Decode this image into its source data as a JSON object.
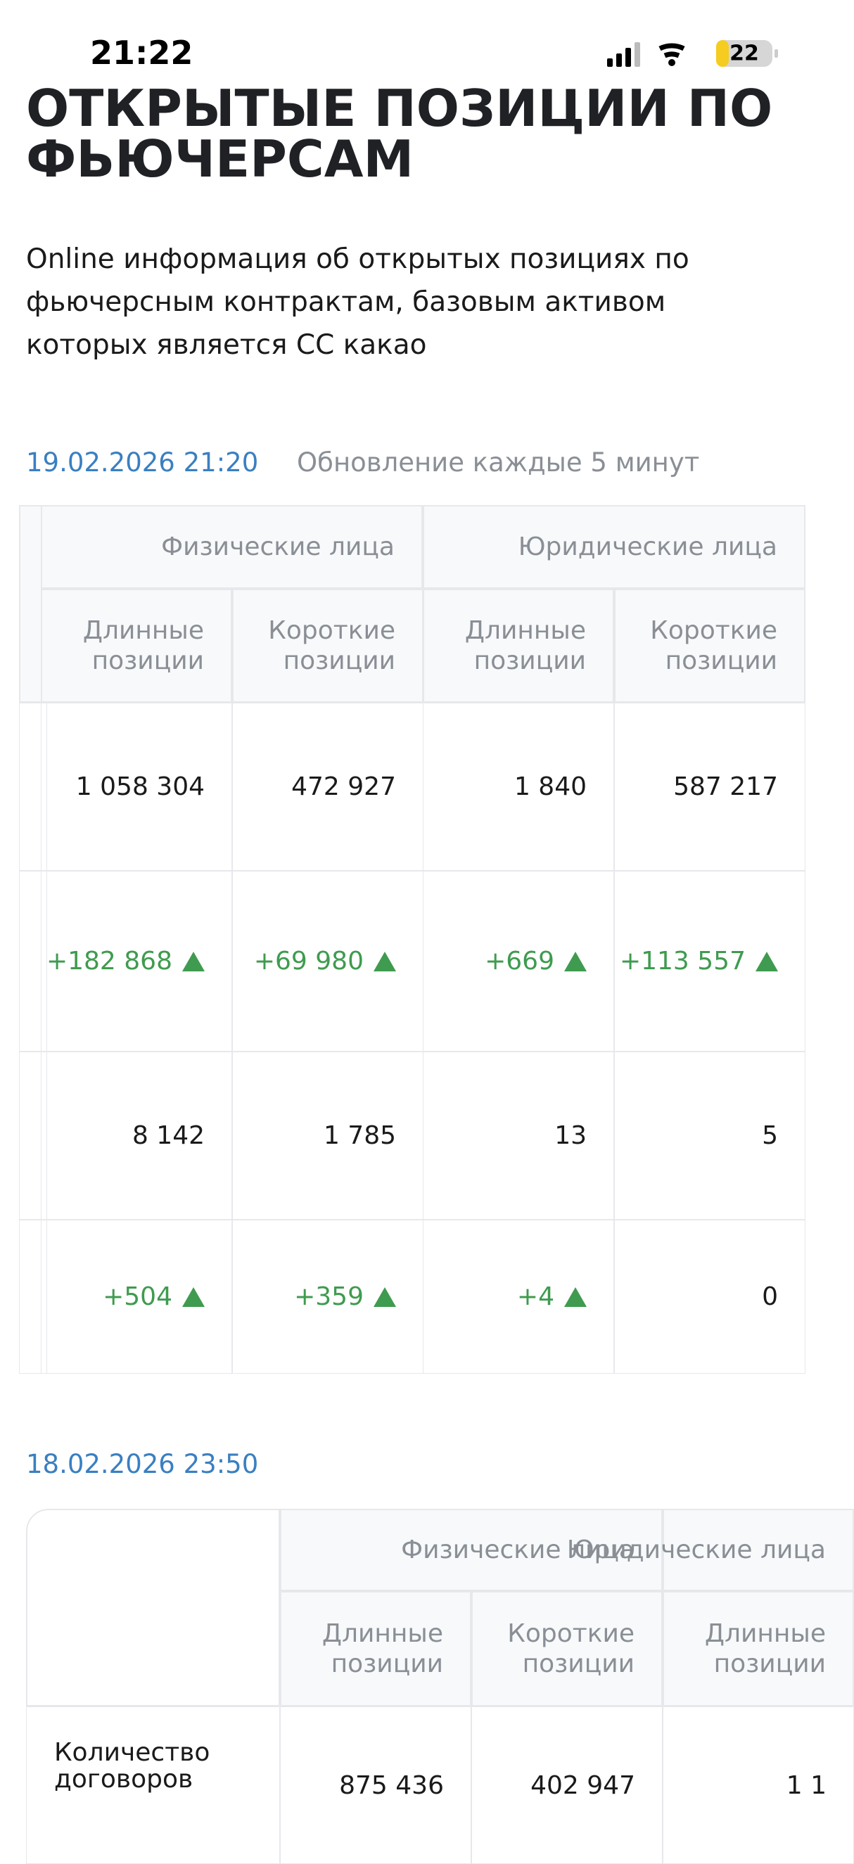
{
  "status_bar": {
    "time": "21:22",
    "battery": "22"
  },
  "header": {
    "title_lines": [
      "ОТКРЫТЫЕ ПОЗИЦИИ ПО",
      "ФЬЮЧЕРСАМ"
    ],
    "description_lines": [
      "Online информация об открытых позициях по",
      "фьючерсным контрактам, базовым активом",
      "которых является CC какао"
    ]
  },
  "table1": {
    "date": "19.02.2026 21:20",
    "update_note": "Обновление каждые 5 минут",
    "group_headers": [
      "Физические лица",
      "Юридические лица"
    ],
    "column_headers": [
      [
        "Длинные",
        "позиции"
      ],
      [
        "Короткие",
        "позиции"
      ],
      [
        "Длинные",
        "позиции"
      ],
      [
        "Короткие",
        "позиции"
      ]
    ],
    "rows": [
      [
        "1 058 304",
        "472 927",
        "1 840",
        "587 217"
      ],
      [
        "+182 868",
        "+69 980",
        "+669",
        "+113 557"
      ],
      [
        "8 142",
        "1 785",
        "13",
        "5"
      ],
      [
        "+504",
        "+359",
        "+4",
        "0"
      ]
    ]
  },
  "table2": {
    "date": "18.02.2026 23:50",
    "group_headers": [
      "Физические лица",
      "Юридические лица"
    ],
    "column_headers": [
      [
        "Длинные",
        "позиции"
      ],
      [
        "Короткие",
        "позиции"
      ],
      [
        "Длинные",
        "позиции"
      ]
    ],
    "rows": [
      {
        "label_lines": [
          "Количество",
          "договоров"
        ],
        "values": [
          "875 436",
          "402 947",
          "1 1"
        ]
      }
    ]
  }
}
